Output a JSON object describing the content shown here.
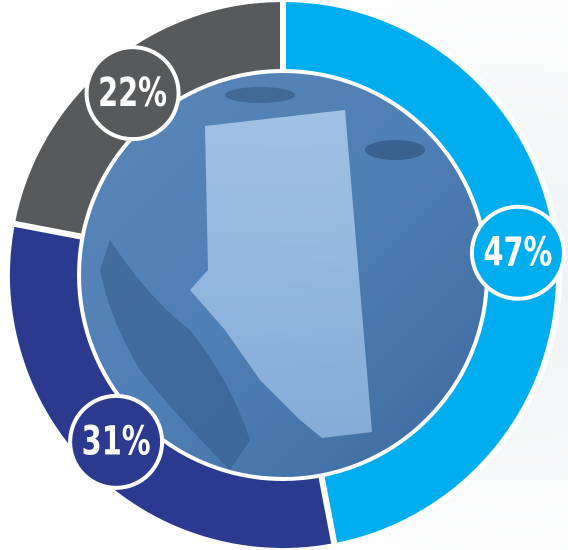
{
  "chart_data": {
    "type": "donut",
    "values": [
      47,
      31,
      22
    ],
    "value_labels": [
      "47%",
      "31%",
      "22%"
    ],
    "colors": [
      "#00aeef",
      "#2b3a8f",
      "#58595b"
    ]
  }
}
